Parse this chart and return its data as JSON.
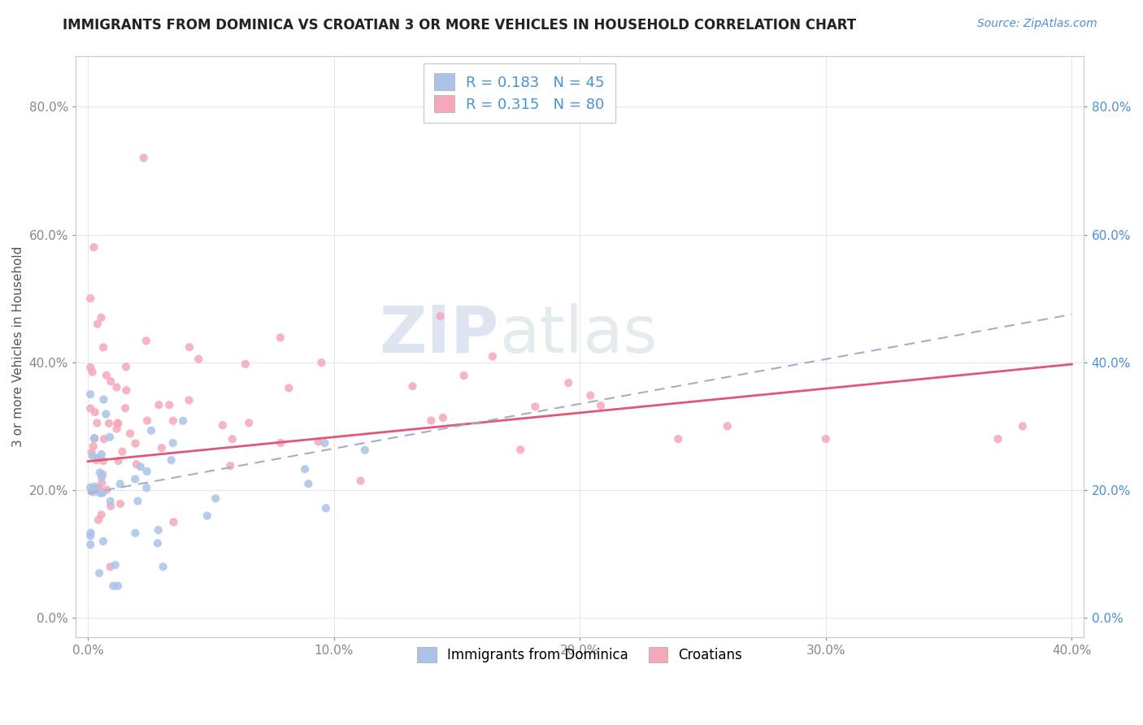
{
  "title": "IMMIGRANTS FROM DOMINICA VS CROATIAN 3 OR MORE VEHICLES IN HOUSEHOLD CORRELATION CHART",
  "source_text": "Source: ZipAtlas.com",
  "ylabel": "3 or more Vehicles in Household",
  "xlim": [
    -0.005,
    0.405
  ],
  "ylim": [
    -0.03,
    0.88
  ],
  "xticks": [
    0.0,
    0.1,
    0.2,
    0.3,
    0.4
  ],
  "xtick_labels": [
    "0.0%",
    "10.0%",
    "20.0%",
    "30.0%",
    "40.0%"
  ],
  "yticks": [
    0.0,
    0.2,
    0.4,
    0.6,
    0.8
  ],
  "ytick_labels": [
    "0.0%",
    "20.0%",
    "40.0%",
    "60.0%",
    "80.0%"
  ],
  "R_blue": 0.183,
  "N_blue": 45,
  "R_pink": 0.315,
  "N_pink": 80,
  "blue_color": "#aac4e8",
  "pink_color": "#f5a8ba",
  "pink_line_color": "#e05878",
  "blue_line_color": "#4477bb",
  "watermark_zip": "ZIP",
  "watermark_atlas": "atlas",
  "watermark_color_zip": "#c8d4e8",
  "watermark_color_atlas": "#c8d4e0",
  "legend_label_blue": "Immigrants from Dominica",
  "legend_label_pink": "Croatians",
  "tick_color_right": "#4a90d9",
  "tick_color_left": "#666666",
  "grid_color": "#e0e8f0",
  "title_fontsize": 12,
  "source_fontsize": 10
}
